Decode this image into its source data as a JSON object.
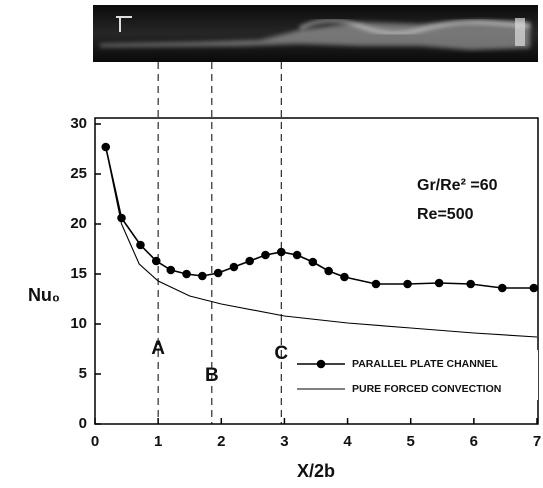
{
  "chart_data": {
    "type": "line",
    "x_label": "X/2b",
    "y_label": "Nu₀",
    "annotations": [
      "Gr/Re² =60",
      "Re=500"
    ],
    "xlim": [
      0,
      7
    ],
    "xticks": [
      0,
      1,
      2,
      3,
      4,
      5,
      6,
      7
    ],
    "ylim": [
      0,
      30
    ],
    "yticks": [
      0,
      5,
      10,
      15,
      20,
      25,
      30
    ],
    "markers": [
      {
        "label": "A",
        "x": 1,
        "y": 7.5
      },
      {
        "label": "B",
        "x": 1.85,
        "y": 4.8
      },
      {
        "label": "C",
        "x": 2.95,
        "y": 7
      }
    ],
    "series": [
      {
        "name": "PARALLEL PLATE CHANNEL",
        "color": "#000000",
        "dots": true,
        "x": [
          0.17,
          0.42,
          0.72,
          0.97,
          1.2,
          1.45,
          1.7,
          1.95,
          2.2,
          2.45,
          2.7,
          2.95,
          3.2,
          3.45,
          3.7,
          3.95,
          4.45,
          4.95,
          5.45,
          5.95,
          6.45,
          6.95
        ],
        "values": [
          27.7,
          20.6,
          17.9,
          16.3,
          15.4,
          15.0,
          14.8,
          15.1,
          15.7,
          16.3,
          16.9,
          17.2,
          16.9,
          16.2,
          15.3,
          14.7,
          14.0,
          14.0,
          14.1,
          14.0,
          13.6,
          13.6
        ]
      },
      {
        "name": "PURE FORCED CONVECTION",
        "color": "#000000",
        "dots": false,
        "x": [
          0.17,
          0.42,
          0.7,
          1,
          1.5,
          2,
          3,
          4,
          5,
          6,
          7
        ],
        "values": [
          27.7,
          20,
          16,
          14.3,
          12.8,
          12,
          10.8,
          10.1,
          9.6,
          9.1,
          8.7
        ]
      }
    ]
  }
}
